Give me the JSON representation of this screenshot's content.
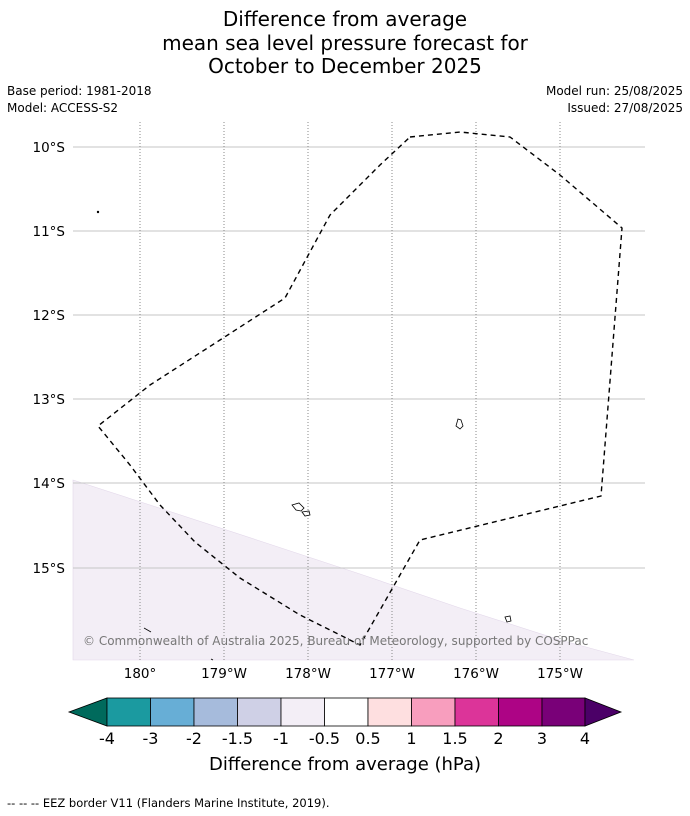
{
  "title": {
    "line1": "Difference from average",
    "line2": "mean sea level pressure forecast for",
    "line3": "October to December 2025"
  },
  "meta": {
    "base_period": "Base period: 1981-2018",
    "model": "Model: ACCESS-S2",
    "model_run": "Model run: 25/08/2025",
    "issued": "Issued: 27/08/2025"
  },
  "map": {
    "lat_labels": [
      "10°S",
      "11°S",
      "12°S",
      "13°S",
      "14°S",
      "15°S"
    ],
    "lon_labels": [
      "180°",
      "179°W",
      "178°W",
      "177°W",
      "176°W",
      "175°W"
    ],
    "copyright": "© Commonwealth of Australia 2025, Bureau of Meteorology, supported by COSPPac",
    "shaded_category": "-0.5 to -1",
    "shaded_color": "#f3eef6"
  },
  "colorbar": {
    "title": "Difference from average (hPa)",
    "tick_labels": [
      "-4",
      "-3",
      "-2",
      "-1.5",
      "-1",
      "-0.5",
      "0.5",
      "1",
      "1.5",
      "2",
      "3",
      "4"
    ],
    "colors": [
      "#006a5c",
      "#1b9aa0",
      "#67aed6",
      "#a6bbdc",
      "#cfd0e6",
      "#f3eef6",
      "#ffffff",
      "#fedfe0",
      "#f89ebe",
      "#dc3499",
      "#ad0485",
      "#790078",
      "#4b0067"
    ]
  },
  "footer": {
    "eez_note": "--  --  -- EEZ border V11 (Flanders Marine Institute, 2019)."
  }
}
